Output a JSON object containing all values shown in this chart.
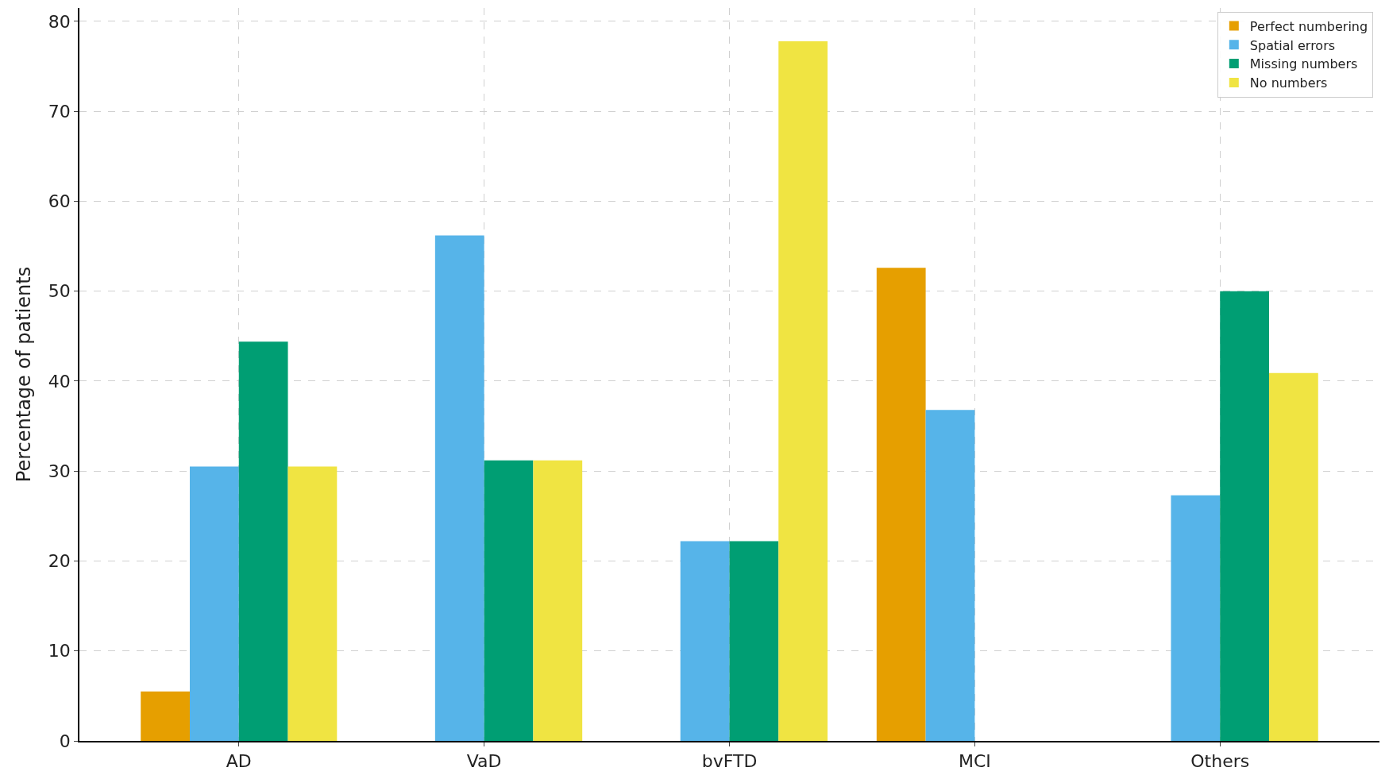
{
  "chart_data": {
    "type": "bar",
    "ylabel": "Percentage of patients",
    "categories": [
      "AD",
      "VaD",
      "bvFTD",
      "MCI",
      "Others"
    ],
    "series": [
      {
        "name": "Perfect numbering",
        "color": "#e69f00",
        "values": [
          5.5,
          0,
          0,
          52.6,
          0
        ]
      },
      {
        "name": "Spatial errors",
        "color": "#56b4e9",
        "values": [
          30.5,
          56.2,
          22.2,
          36.8,
          27.3
        ]
      },
      {
        "name": "Missing numbers",
        "color": "#009e73",
        "values": [
          44.4,
          31.2,
          22.2,
          0,
          50
        ]
      },
      {
        "name": "No numbers",
        "color": "#f0e442",
        "values": [
          30.5,
          31.2,
          77.8,
          0,
          40.9
        ]
      }
    ],
    "ylim": [
      0,
      81.5
    ],
    "yticks": [
      0,
      10,
      20,
      30,
      40,
      50,
      60,
      70,
      80
    ],
    "grid": true,
    "legend": "top right"
  }
}
